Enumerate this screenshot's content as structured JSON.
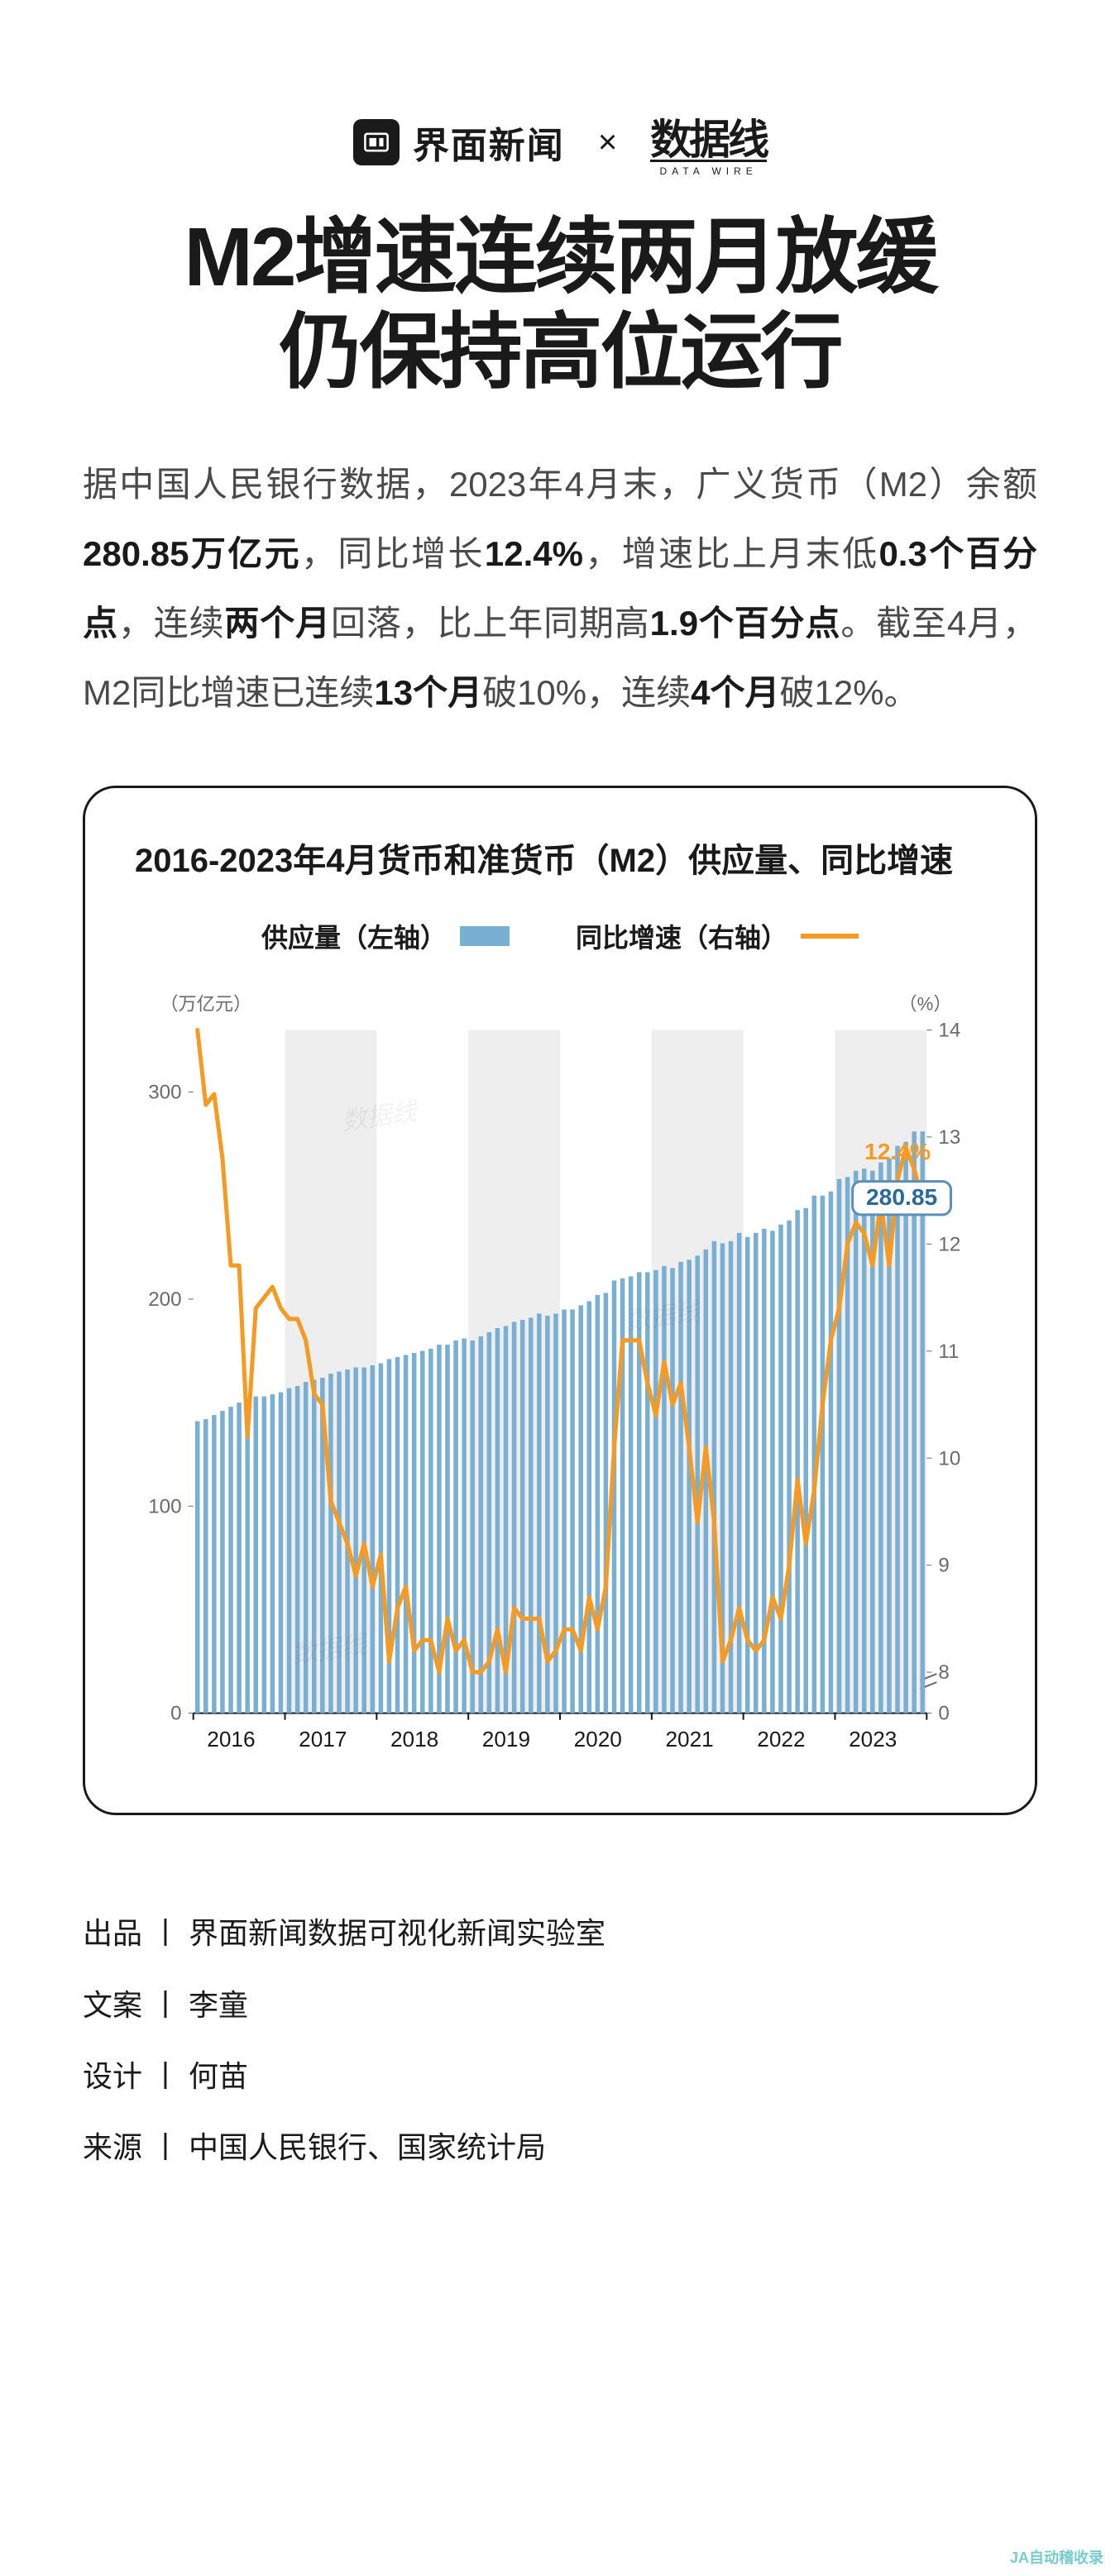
{
  "brand": {
    "jiemian": "界面新闻",
    "x": "×",
    "datawire": "数据线"
  },
  "headline_line1": "M2增速连续两月放缓",
  "headline_line2": "仍保持高位运行",
  "body_html": "据中国人民银行数据，2023年4月末，广义货币（M2）余额<b>280.85万亿元</b>，同比增长<b>12.4%</b>，增速比上月末低<b>0.3个百分点</b>，连续<b>两个月</b>回落，比上年同期高<b>1.9个百分点</b>。截至4月，M2同比增速已连续<b>13个月</b>破10%，连续<b>4个月</b>破12%。",
  "chart": {
    "title": "2016-2023年4月货币和准货币（M2）供应量、同比增速",
    "legend": {
      "bars": "供应量（左轴）",
      "line": "同比增速（右轴）"
    },
    "y_left": {
      "unit": "（万亿元）",
      "ticks": [
        0,
        100,
        200,
        300
      ],
      "lim": [
        0,
        330
      ]
    },
    "y_right": {
      "unit": "（%）",
      "ticks": [
        0,
        8,
        9,
        10,
        11,
        12,
        13,
        14
      ],
      "lim": [
        0,
        14
      ],
      "break_between": [
        0,
        8
      ]
    },
    "x": {
      "labels": [
        "2016",
        "2017",
        "2018",
        "2019",
        "2020",
        "2021",
        "2022",
        "2023"
      ],
      "n_points": 88
    },
    "callout": {
      "line_label": "12.4%",
      "bar_label": "280.85"
    },
    "colors": {
      "bar": "#7aafd4",
      "line": "#f59a22",
      "grid": "#d9d9d9",
      "band": "#eeeeee",
      "axis_text": "#6a6a6a",
      "callout_box_border": "#5a8fb8",
      "callout_box_fill": "#ffffff",
      "callout_box_text": "#2a6a9a",
      "background": "#ffffff"
    },
    "style": {
      "bar_width_ratio": 0.55,
      "line_width": 5,
      "axis_fontsize": 24,
      "unit_fontsize": 22,
      "callout_fontsize": 28
    },
    "supply_values": [
      141,
      142,
      144,
      146,
      148,
      150,
      152,
      153,
      153,
      154,
      155,
      157,
      158,
      160,
      161,
      162,
      164,
      165,
      166,
      167,
      167,
      168,
      169,
      171,
      172,
      173,
      174,
      175,
      176,
      178,
      178,
      180,
      181,
      180,
      182,
      184,
      186,
      187,
      189,
      190,
      191,
      193,
      192,
      193,
      195,
      195,
      197,
      199,
      202,
      203,
      209,
      210,
      211,
      213,
      213,
      214,
      216,
      215,
      218,
      219,
      221,
      224,
      228,
      227,
      228,
      232,
      230,
      232,
      234,
      233,
      236,
      238,
      243,
      244,
      250,
      250,
      252,
      258,
      259,
      262,
      263,
      262,
      266,
      268,
      274,
      276,
      281,
      281
    ],
    "growth_values": [
      14.0,
      13.3,
      13.4,
      12.8,
      11.8,
      11.8,
      10.2,
      11.4,
      11.5,
      11.6,
      11.4,
      11.3,
      11.3,
      11.1,
      10.6,
      10.5,
      9.6,
      9.4,
      9.2,
      8.9,
      9.2,
      8.8,
      9.1,
      8.1,
      8.6,
      8.8,
      8.2,
      8.3,
      8.3,
      8.0,
      8.5,
      8.2,
      8.3,
      8.0,
      8.0,
      8.1,
      8.4,
      8.0,
      8.6,
      8.5,
      8.5,
      8.5,
      8.1,
      8.2,
      8.4,
      8.4,
      8.2,
      8.7,
      8.4,
      8.8,
      10.1,
      11.1,
      11.1,
      11.1,
      10.7,
      10.4,
      10.9,
      10.5,
      10.7,
      10.1,
      9.4,
      10.1,
      9.4,
      8.1,
      8.3,
      8.6,
      8.3,
      8.2,
      8.3,
      8.7,
      8.5,
      9.0,
      9.8,
      9.2,
      9.7,
      10.5,
      11.1,
      11.4,
      12.0,
      12.2,
      12.1,
      11.8,
      12.4,
      11.8,
      12.6,
      12.9,
      12.7,
      12.4
    ]
  },
  "credits": {
    "producer_label": "出品",
    "producer": "界面新闻数据可视化新闻实验室",
    "writer_label": "文案",
    "writer": "李童",
    "designer_label": "设计",
    "designer": "何苗",
    "source_label": "来源",
    "source": "中国人民银行、国家统计局"
  },
  "watermark": "JA自动稽收录"
}
